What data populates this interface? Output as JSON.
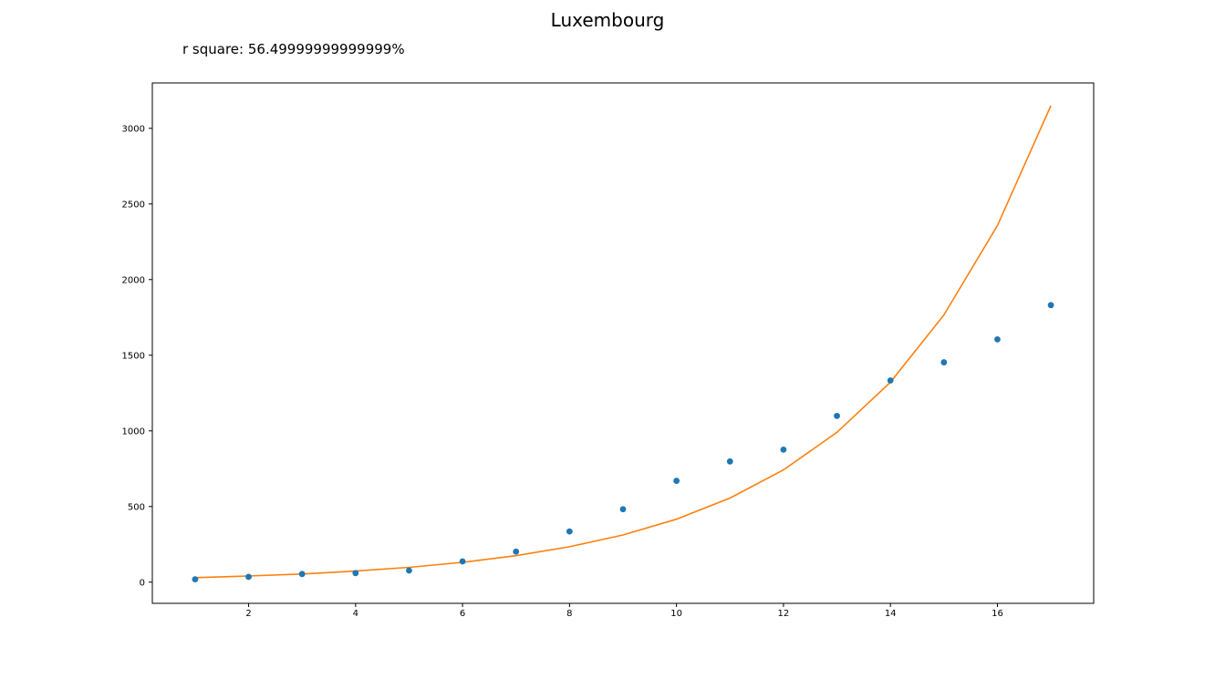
{
  "chart_data": {
    "type": "scatter",
    "title": "Luxembourg",
    "annotation": "r square: 56.49999999999999%",
    "xlabel": "",
    "ylabel": "",
    "xlim": [
      0.2,
      17.8
    ],
    "ylim": [
      -140,
      3300
    ],
    "xticks": [
      2,
      4,
      6,
      8,
      10,
      12,
      14,
      16
    ],
    "yticks": [
      0,
      500,
      1000,
      1500,
      2000,
      2500,
      3000
    ],
    "grid": false,
    "series": [
      {
        "kind": "points",
        "color": "#1f77b4",
        "x": [
          1,
          2,
          3,
          4,
          5,
          6,
          7,
          8,
          9,
          10,
          11,
          12,
          13,
          14,
          15,
          16,
          17
        ],
        "y": [
          19,
          35,
          54,
          60,
          77,
          137,
          202,
          335,
          482,
          670,
          798,
          876,
          1099,
          1333,
          1453,
          1605,
          1831
        ]
      },
      {
        "kind": "line",
        "color": "#ff7f0e",
        "x": [
          1,
          2,
          3,
          4,
          5,
          6,
          7,
          8,
          9,
          10,
          11,
          12,
          13,
          14,
          15,
          16,
          17
        ],
        "y": [
          30,
          41,
          54,
          73,
          98,
          131,
          175,
          234,
          312,
          416,
          556,
          742,
          990,
          1322,
          1766,
          2358,
          3150
        ]
      }
    ]
  }
}
